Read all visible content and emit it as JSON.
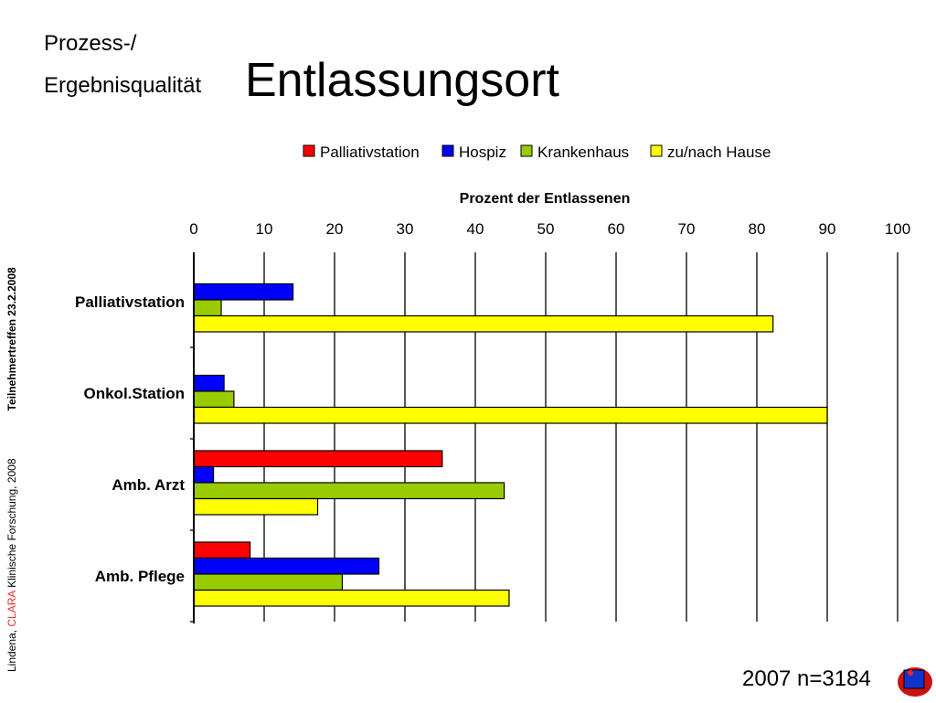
{
  "slide": {
    "title_line1": "Prozess-/",
    "title_line2": "Ergebnisqualität",
    "title_main": "Entlassungsort",
    "footer_n": "2007 n=3184",
    "side_prefix": "Lindena, ",
    "side_clara": "CLARA",
    "side_rest": " Klinische Forschung, 2008",
    "side_meeting": "Teilnehmertreffen 23.2.2008",
    "logo_icon": "clara-logo-icon"
  },
  "chart_data": {
    "type": "bar",
    "orientation": "horizontal",
    "xlabel": "Prozent der Entlassenen",
    "xlim": [
      0,
      100
    ],
    "xticks": [
      "0",
      "10",
      "20",
      "30",
      "40",
      "50",
      "60",
      "70",
      "80",
      "90",
      "100"
    ],
    "grid": true,
    "legend_position": "top",
    "categories": [
      "Palliativstation",
      "Onkol.Station",
      "Amb. Arzt",
      "Amb. Pflege"
    ],
    "series": [
      {
        "name": "Palliativstation",
        "color": "#ff0000",
        "values": [
          0,
          0,
          35.3,
          8.0
        ]
      },
      {
        "name": "Hospiz",
        "color": "#0000ff",
        "values": [
          14.1,
          4.3,
          2.8,
          26.3
        ]
      },
      {
        "name": "Krankenhaus",
        "color": "#99cc00",
        "values": [
          3.9,
          5.7,
          44.1,
          21.1
        ]
      },
      {
        "name": "zu/nach Hause",
        "color": "#ffff00",
        "values": [
          82.3,
          90.0,
          17.6,
          44.8
        ]
      }
    ]
  }
}
